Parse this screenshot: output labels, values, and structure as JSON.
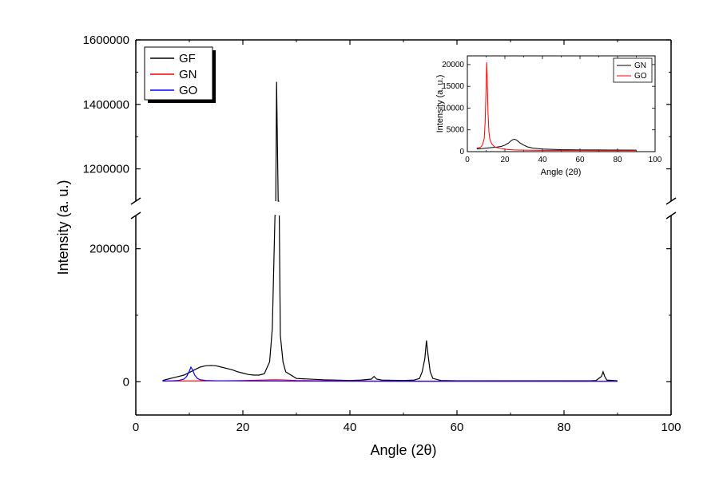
{
  "main_chart": {
    "type": "line",
    "xlabel": "Angle (2θ)",
    "ylabel": "Intensity (a. u.)",
    "label_fontsize": 18,
    "tick_fontsize": 15,
    "background_color": "#ffffff",
    "axis_color": "#000000",
    "xlim": [
      0,
      100
    ],
    "xtick_step": 20,
    "xticks": [
      0,
      20,
      40,
      60,
      80,
      100
    ],
    "y_upper": {
      "lim": [
        1100000,
        1600000
      ],
      "ticks": [
        1200000,
        1400000,
        1600000
      ],
      "tick_labels": [
        "1200000",
        "1400000",
        "1600000"
      ]
    },
    "y_lower": {
      "lim": [
        -50000,
        250000
      ],
      "ticks": [
        0,
        200000
      ],
      "tick_labels": [
        "0",
        "200000"
      ]
    },
    "break_symbol_width": 8,
    "series": [
      {
        "name": "GF",
        "color": "#000000",
        "line_width": 1.2,
        "data": [
          [
            5,
            2000
          ],
          [
            6,
            4000
          ],
          [
            7,
            6000
          ],
          [
            8,
            8000
          ],
          [
            9,
            10000
          ],
          [
            10,
            14000
          ],
          [
            11,
            18000
          ],
          [
            12,
            22000
          ],
          [
            13,
            24000
          ],
          [
            14,
            24500
          ],
          [
            15,
            24000
          ],
          [
            16,
            22000
          ],
          [
            17,
            20000
          ],
          [
            18,
            18000
          ],
          [
            19,
            15000
          ],
          [
            20,
            13000
          ],
          [
            21,
            11000
          ],
          [
            22,
            10000
          ],
          [
            23,
            10000
          ],
          [
            24,
            12000
          ],
          [
            25,
            30000
          ],
          [
            25.5,
            80000
          ],
          [
            26,
            400000
          ],
          [
            26.3,
            1470000
          ],
          [
            26.6,
            350000
          ],
          [
            27,
            70000
          ],
          [
            27.5,
            30000
          ],
          [
            28,
            15000
          ],
          [
            30,
            5000
          ],
          [
            35,
            3000
          ],
          [
            40,
            2000
          ],
          [
            42,
            2500
          ],
          [
            44,
            4000
          ],
          [
            44.5,
            8000
          ],
          [
            45,
            4000
          ],
          [
            46,
            2500
          ],
          [
            50,
            2000
          ],
          [
            52,
            2500
          ],
          [
            53,
            5000
          ],
          [
            53.5,
            15000
          ],
          [
            54,
            35000
          ],
          [
            54.3,
            62000
          ],
          [
            54.6,
            40000
          ],
          [
            55,
            15000
          ],
          [
            55.5,
            5000
          ],
          [
            57,
            2000
          ],
          [
            60,
            1500
          ],
          [
            70,
            1500
          ],
          [
            80,
            1500
          ],
          [
            85,
            1500
          ],
          [
            86,
            2000
          ],
          [
            87,
            8000
          ],
          [
            87.3,
            15000
          ],
          [
            87.6,
            8000
          ],
          [
            88,
            2500
          ],
          [
            90,
            1500
          ]
        ]
      },
      {
        "name": "GN",
        "color": "#ff0000",
        "line_width": 1.2,
        "data": [
          [
            5,
            1000
          ],
          [
            10,
            1200
          ],
          [
            15,
            1400
          ],
          [
            20,
            1800
          ],
          [
            22,
            2200
          ],
          [
            24,
            2600
          ],
          [
            25,
            2800
          ],
          [
            26,
            3000
          ],
          [
            27,
            2900
          ],
          [
            28,
            2600
          ],
          [
            30,
            2000
          ],
          [
            35,
            1500
          ],
          [
            40,
            1200
          ],
          [
            50,
            1000
          ],
          [
            60,
            900
          ],
          [
            70,
            850
          ],
          [
            80,
            800
          ],
          [
            90,
            800
          ]
        ]
      },
      {
        "name": "GO",
        "color": "#0000ff",
        "line_width": 1.2,
        "data": [
          [
            5,
            1000
          ],
          [
            7,
            1500
          ],
          [
            8,
            2000
          ],
          [
            9,
            4000
          ],
          [
            9.5,
            8000
          ],
          [
            10,
            16000
          ],
          [
            10.3,
            22000
          ],
          [
            10.6,
            18000
          ],
          [
            11,
            10000
          ],
          [
            11.5,
            5000
          ],
          [
            12,
            3000
          ],
          [
            13,
            2000
          ],
          [
            15,
            1500
          ],
          [
            20,
            1200
          ],
          [
            30,
            1000
          ],
          [
            40,
            800
          ],
          [
            50,
            700
          ],
          [
            60,
            650
          ],
          [
            70,
            600
          ],
          [
            80,
            600
          ],
          [
            90,
            600
          ]
        ]
      }
    ],
    "legend": {
      "position": "top-left",
      "box_fill": "#ffffff",
      "box_stroke": "#000000",
      "shadow_color": "#000000",
      "font_size": 15,
      "items": [
        {
          "label": "GF",
          "color": "#000000"
        },
        {
          "label": "GN",
          "color": "#ff0000"
        },
        {
          "label": "GO",
          "color": "#0000ff"
        }
      ]
    }
  },
  "inset_chart": {
    "type": "line",
    "xlabel": "Angle (2θ)",
    "ylabel": "Intensity (a. u.)",
    "label_fontsize": 11,
    "tick_fontsize": 10,
    "background_color": "#ffffff",
    "axis_color": "#000000",
    "xlim": [
      0,
      100
    ],
    "xticks": [
      0,
      20,
      40,
      60,
      80,
      100
    ],
    "ylim": [
      0,
      22000
    ],
    "yticks": [
      0,
      5000,
      10000,
      15000,
      20000
    ],
    "ytick_labels": [
      "0",
      "5000",
      "10000",
      "15000",
      "20000"
    ],
    "series": [
      {
        "name": "GN",
        "color": "#000000",
        "line_width": 1,
        "data": [
          [
            5,
            600
          ],
          [
            8,
            700
          ],
          [
            10,
            800
          ],
          [
            12,
            900
          ],
          [
            15,
            1000
          ],
          [
            18,
            1200
          ],
          [
            20,
            1500
          ],
          [
            22,
            2000
          ],
          [
            23,
            2400
          ],
          [
            24,
            2700
          ],
          [
            25,
            2850
          ],
          [
            26,
            2700
          ],
          [
            27,
            2400
          ],
          [
            28,
            2000
          ],
          [
            30,
            1500
          ],
          [
            32,
            1100
          ],
          [
            35,
            800
          ],
          [
            40,
            600
          ],
          [
            50,
            450
          ],
          [
            60,
            400
          ],
          [
            70,
            380
          ],
          [
            80,
            360
          ],
          [
            90,
            350
          ]
        ]
      },
      {
        "name": "GO",
        "color": "#ff0000",
        "line_width": 1,
        "data": [
          [
            5,
            800
          ],
          [
            7,
            1000
          ],
          [
            8,
            1500
          ],
          [
            9,
            3000
          ],
          [
            9.5,
            7000
          ],
          [
            10,
            15000
          ],
          [
            10.3,
            20500
          ],
          [
            10.6,
            17000
          ],
          [
            11,
            9000
          ],
          [
            11.5,
            4500
          ],
          [
            12,
            2800
          ],
          [
            13,
            1800
          ],
          [
            14,
            1300
          ],
          [
            15,
            1000
          ],
          [
            18,
            700
          ],
          [
            20,
            550
          ],
          [
            25,
            400
          ],
          [
            30,
            350
          ],
          [
            40,
            300
          ],
          [
            50,
            280
          ],
          [
            60,
            270
          ],
          [
            70,
            260
          ],
          [
            80,
            260
          ],
          [
            90,
            260
          ]
        ]
      }
    ],
    "legend": {
      "position": "top-right",
      "box_fill": "#ffffff",
      "box_stroke": "#000000",
      "font_size": 10,
      "items": [
        {
          "label": "GN",
          "color": "#000000"
        },
        {
          "label": "GO",
          "color": "#ff0000"
        }
      ]
    }
  }
}
